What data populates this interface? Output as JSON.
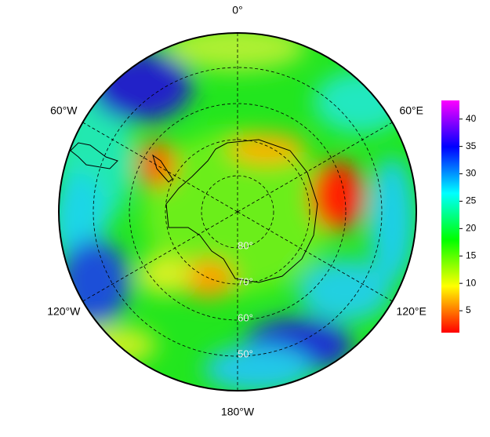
{
  "map": {
    "longitude_labels": [
      {
        "value": 0,
        "label": "0°"
      },
      {
        "value": 60,
        "label": "60°E"
      },
      {
        "value": 120,
        "label": "120°E"
      },
      {
        "value": 180,
        "label": "180°W"
      },
      {
        "value": -120,
        "label": "120°W"
      },
      {
        "value": -60,
        "label": "60°W"
      }
    ],
    "latitude_labels": [
      {
        "value": 80,
        "label": "80°"
      },
      {
        "value": 70,
        "label": "70°"
      },
      {
        "value": 60,
        "label": "60°"
      },
      {
        "value": 50,
        "label": "50°"
      }
    ]
  },
  "colorbar": {
    "ylim": [
      1,
      43.4
    ],
    "yticks": [
      5,
      10,
      15,
      20,
      25,
      30,
      35,
      40
    ],
    "colormap": [
      "#ff0000",
      "#ffff00",
      "#00ff00",
      "#00ffff",
      "#0000ff",
      "#ff00ff"
    ]
  }
}
